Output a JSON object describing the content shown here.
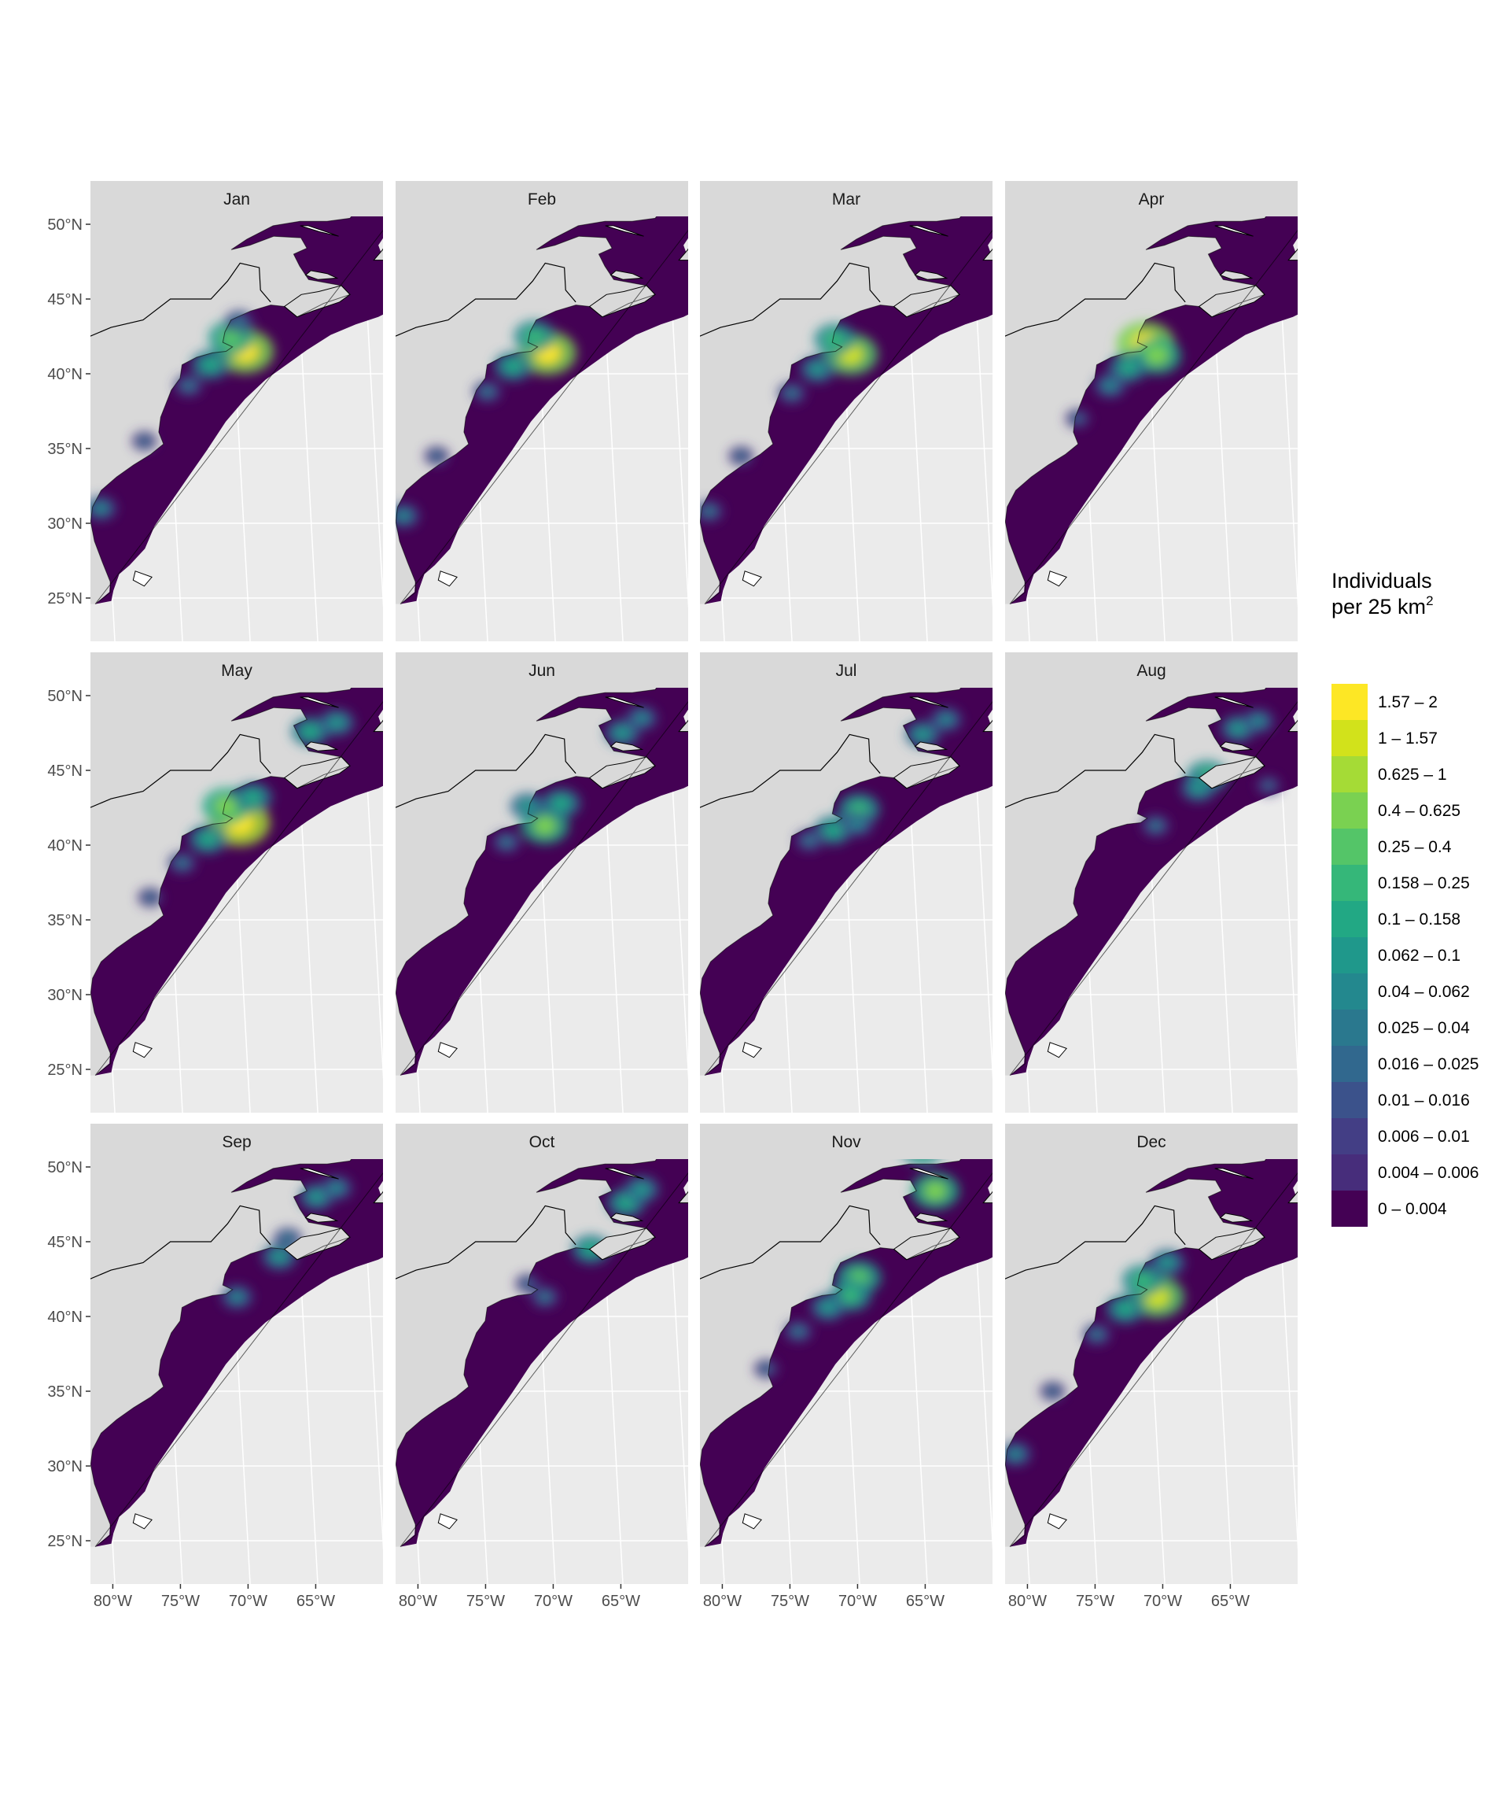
{
  "figure": {
    "panels": [
      {
        "month": "Jan",
        "hotspots": [
          {
            "lon": -69.2,
            "lat": 41.5,
            "level": 14
          },
          {
            "lon": -70.2,
            "lat": 42.4,
            "level": 10
          },
          {
            "lon": -71.8,
            "lat": 40.6,
            "level": 8
          },
          {
            "lon": -73.5,
            "lat": 39.2,
            "level": 5
          },
          {
            "lon": -77.0,
            "lat": 35.5,
            "level": 4
          },
          {
            "lon": -80.5,
            "lat": 31.0,
            "level": 6
          },
          {
            "lon": -69.5,
            "lat": 43.5,
            "level": 5
          }
        ]
      },
      {
        "month": "Feb",
        "hotspots": [
          {
            "lon": -69.4,
            "lat": 41.4,
            "level": 14
          },
          {
            "lon": -70.3,
            "lat": 42.5,
            "level": 9
          },
          {
            "lon": -72.0,
            "lat": 40.5,
            "level": 8
          },
          {
            "lon": -74.0,
            "lat": 38.8,
            "level": 5
          },
          {
            "lon": -78.0,
            "lat": 34.5,
            "level": 4
          },
          {
            "lon": -80.7,
            "lat": 30.5,
            "level": 6
          }
        ]
      },
      {
        "month": "Mar",
        "hotspots": [
          {
            "lon": -69.5,
            "lat": 41.3,
            "level": 13
          },
          {
            "lon": -70.6,
            "lat": 42.3,
            "level": 9
          },
          {
            "lon": -72.0,
            "lat": 40.3,
            "level": 7
          },
          {
            "lon": -74.0,
            "lat": 38.7,
            "level": 5
          },
          {
            "lon": -78.0,
            "lat": 34.5,
            "level": 4
          },
          {
            "lon": -80.6,
            "lat": 30.8,
            "level": 5
          }
        ]
      },
      {
        "month": "Apr",
        "hotspots": [
          {
            "lon": -70.2,
            "lat": 42.0,
            "level": 14
          },
          {
            "lon": -69.4,
            "lat": 41.2,
            "level": 11
          },
          {
            "lon": -71.6,
            "lat": 40.4,
            "level": 8
          },
          {
            "lon": -73.0,
            "lat": 39.2,
            "level": 6
          },
          {
            "lon": -75.5,
            "lat": 37.0,
            "level": 4
          }
        ]
      },
      {
        "month": "May",
        "hotspots": [
          {
            "lon": -69.6,
            "lat": 41.5,
            "level": 15
          },
          {
            "lon": -70.5,
            "lat": 42.6,
            "level": 11
          },
          {
            "lon": -68.5,
            "lat": 43.2,
            "level": 8
          },
          {
            "lon": -72.0,
            "lat": 40.4,
            "level": 8
          },
          {
            "lon": -64.0,
            "lat": 47.6,
            "level": 8
          },
          {
            "lon": -62.0,
            "lat": 48.2,
            "level": 7
          },
          {
            "lon": -74.0,
            "lat": 38.8,
            "level": 5
          },
          {
            "lon": -76.5,
            "lat": 36.5,
            "level": 4
          }
        ]
      },
      {
        "month": "Jun",
        "hotspots": [
          {
            "lon": -69.6,
            "lat": 41.3,
            "level": 11
          },
          {
            "lon": -68.3,
            "lat": 42.8,
            "level": 8
          },
          {
            "lon": -70.8,
            "lat": 42.6,
            "level": 7
          },
          {
            "lon": -63.5,
            "lat": 47.5,
            "level": 7
          },
          {
            "lon": -62.0,
            "lat": 48.5,
            "level": 6
          },
          {
            "lon": -72.5,
            "lat": 40.2,
            "level": 5
          }
        ]
      },
      {
        "month": "Jul",
        "hotspots": [
          {
            "lon": -68.8,
            "lat": 42.4,
            "level": 9
          },
          {
            "lon": -70.8,
            "lat": 41.0,
            "level": 8
          },
          {
            "lon": -69.0,
            "lat": 41.4,
            "level": 6
          },
          {
            "lon": -63.8,
            "lat": 47.4,
            "level": 7
          },
          {
            "lon": -62.0,
            "lat": 48.4,
            "level": 6
          },
          {
            "lon": -72.6,
            "lat": 40.3,
            "level": 5
          }
        ]
      },
      {
        "month": "Aug",
        "hotspots": [
          {
            "lon": -65.5,
            "lat": 44.6,
            "level": 9
          },
          {
            "lon": -66.2,
            "lat": 43.8,
            "level": 7
          },
          {
            "lon": -63.0,
            "lat": 47.8,
            "level": 7
          },
          {
            "lon": -61.5,
            "lat": 48.3,
            "level": 6
          },
          {
            "lon": -69.5,
            "lat": 41.3,
            "level": 5
          },
          {
            "lon": -61.0,
            "lat": 44.0,
            "level": 4
          }
        ]
      },
      {
        "month": "Sep",
        "hotspots": [
          {
            "lon": -63.5,
            "lat": 48.0,
            "level": 7
          },
          {
            "lon": -62.0,
            "lat": 48.6,
            "level": 6
          },
          {
            "lon": -66.5,
            "lat": 44.0,
            "level": 7
          },
          {
            "lon": -65.8,
            "lat": 45.2,
            "level": 5
          },
          {
            "lon": -69.8,
            "lat": 41.3,
            "level": 6
          }
        ]
      },
      {
        "month": "Oct",
        "hotspots": [
          {
            "lon": -63.2,
            "lat": 47.6,
            "level": 8
          },
          {
            "lon": -62.0,
            "lat": 48.5,
            "level": 7
          },
          {
            "lon": -66.0,
            "lat": 44.5,
            "level": 8
          },
          {
            "lon": -69.6,
            "lat": 41.3,
            "level": 5
          },
          {
            "lon": -70.8,
            "lat": 42.2,
            "level": 4
          }
        ]
      },
      {
        "month": "Nov",
        "hotspots": [
          {
            "lon": -62.8,
            "lat": 48.4,
            "level": 11
          },
          {
            "lon": -63.6,
            "lat": 51.2,
            "level": 9
          },
          {
            "lon": -68.8,
            "lat": 42.6,
            "level": 10
          },
          {
            "lon": -69.5,
            "lat": 41.4,
            "level": 9
          },
          {
            "lon": -71.2,
            "lat": 40.6,
            "level": 7
          },
          {
            "lon": -73.5,
            "lat": 39.0,
            "level": 5
          },
          {
            "lon": -76.0,
            "lat": 36.5,
            "level": 4
          }
        ]
      },
      {
        "month": "Dec",
        "hotspots": [
          {
            "lon": -69.4,
            "lat": 41.3,
            "level": 13
          },
          {
            "lon": -70.4,
            "lat": 42.4,
            "level": 9
          },
          {
            "lon": -68.5,
            "lat": 43.6,
            "level": 7
          },
          {
            "lon": -71.8,
            "lat": 40.5,
            "level": 8
          },
          {
            "lon": -74.0,
            "lat": 38.8,
            "level": 5
          },
          {
            "lon": -77.5,
            "lat": 35.0,
            "level": 4
          },
          {
            "lon": -80.5,
            "lat": 30.8,
            "level": 6
          }
        ]
      }
    ],
    "y_axis_labels": [
      "50°N",
      "45°N",
      "40°N",
      "35°N",
      "30°N",
      "25°N"
    ],
    "x_axis_labels": [
      "80°W",
      "75°W",
      "70°W",
      "65°W"
    ]
  },
  "legend": {
    "title_line1": "Individuals",
    "title_line2": "per 25 km",
    "title_superscript": "2",
    "bins": [
      {
        "label": "1.57 – 2",
        "color": "#FDE725"
      },
      {
        "label": "1 – 1.57",
        "color": "#D2E21B"
      },
      {
        "label": "0.625 – 1",
        "color": "#A5DB36"
      },
      {
        "label": "0.4 – 0.625",
        "color": "#7AD151"
      },
      {
        "label": "0.25 – 0.4",
        "color": "#54C568"
      },
      {
        "label": "0.158 – 0.25",
        "color": "#35B779"
      },
      {
        "label": "0.1 – 0.158",
        "color": "#22A884"
      },
      {
        "label": "0.062 – 0.1",
        "color": "#1F988B"
      },
      {
        "label": "0.04 – 0.062",
        "color": "#23888E"
      },
      {
        "label": "0.025 – 0.04",
        "color": "#2A788E"
      },
      {
        "label": "0.016 – 0.025",
        "color": "#31688E"
      },
      {
        "label": "0.01 – 0.016",
        "color": "#3B528B"
      },
      {
        "label": "0.006 – 0.01",
        "color": "#433E85"
      },
      {
        "label": "0.004 – 0.006",
        "color": "#472D7B"
      },
      {
        "label": "0 – 0.004",
        "color": "#440154"
      }
    ]
  },
  "colors": {
    "ocean_background": "#EBEBEB",
    "land": "#D9D9D9",
    "strip_background": "#D9D9D9",
    "graticule": "#FFFFFF",
    "study_area": "#440154",
    "coastline": "#000000"
  }
}
